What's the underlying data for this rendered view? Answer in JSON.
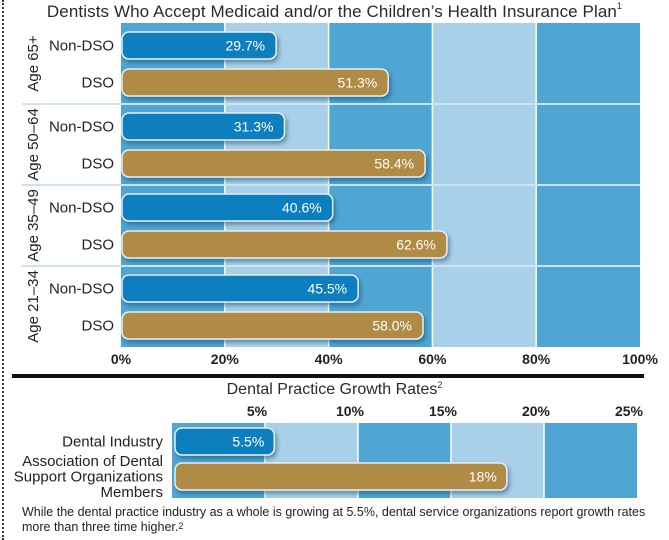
{
  "chart_data": [
    {
      "type": "bar",
      "orientation": "horizontal",
      "title": "Dentists Who Accept Medicaid and/or the Children’s Health Insurance Plan",
      "title_footnote": "1",
      "groups": [
        "Age 65+",
        "Age 50–64",
        "Age 35–49",
        "Age 21–34"
      ],
      "categories": [
        "Non-DSO",
        "DSO"
      ],
      "series": [
        {
          "name": "Non-DSO",
          "color": "#0a7fbf",
          "values": [
            29.7,
            31.3,
            40.6,
            45.5
          ],
          "labels": [
            "29.7%",
            "31.3%",
            "40.6%",
            "45.5%"
          ]
        },
        {
          "name": "DSO",
          "color": "#b08b45",
          "values": [
            51.3,
            58.4,
            62.6,
            58.0
          ],
          "labels": [
            "51.3%",
            "58.4%",
            "62.6%",
            "58.0%"
          ]
        }
      ],
      "xlim": [
        0,
        100
      ],
      "xticks": [
        0,
        20,
        40,
        60,
        80,
        100
      ],
      "xtick_labels": [
        "0%",
        "20%",
        "40%",
        "60%",
        "80%",
        "100%"
      ],
      "xlabel": "",
      "ylabel": "",
      "band_colors": [
        "#4fa6d3",
        "#a9d0e9"
      ]
    },
    {
      "type": "bar",
      "orientation": "horizontal",
      "title": "Dental Practice Growth Rates",
      "title_footnote": "2",
      "categories": [
        "Dental Industry",
        "Association of Dental Support Organizations Members"
      ],
      "category_lines": [
        [
          "Dental Industry"
        ],
        [
          "Association of Dental",
          "Support Organizations",
          "Members"
        ]
      ],
      "series": [
        {
          "name": "Growth rate",
          "values": [
            5.5,
            18
          ],
          "labels": [
            "5.5%",
            "18%"
          ],
          "colors": [
            "#0a7fbf",
            "#b08b45"
          ]
        }
      ],
      "xlim": [
        0,
        25
      ],
      "xticks": [
        5,
        10,
        15,
        20,
        25
      ],
      "xtick_labels": [
        "5%",
        "10%",
        "15%",
        "20%",
        "25%"
      ],
      "xtick_position": "top",
      "xlabel": "",
      "ylabel": ""
    }
  ],
  "footnote": {
    "text": "While the dental practice industry as a whole is growing at 5.5%, dental service organizations report growth rates more than three time higher.",
    "superscript": "2"
  }
}
